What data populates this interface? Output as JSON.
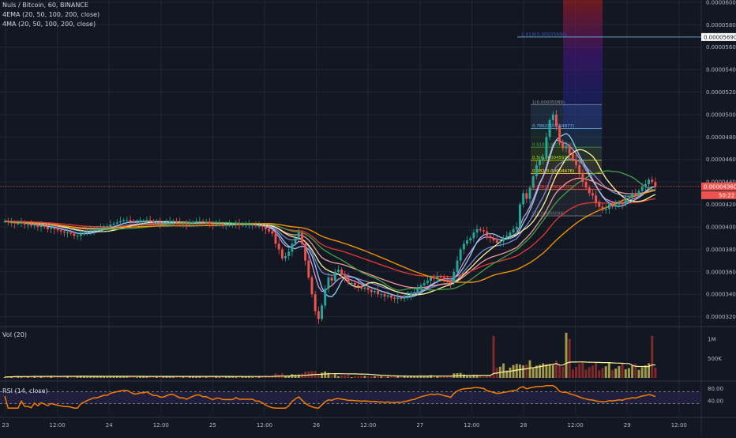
{
  "header": {
    "title": "Nuls / Bitcoin, 60, BINANCE",
    "ema_label": "4EMA (20, 50, 100, 200, close)",
    "ma_label": "4MA (20, 50, 100, 200, close)",
    "vol_label": "Vol (20)",
    "rsi_label": "RSI (14, close)"
  },
  "colors": {
    "background": "#131722",
    "grid": "#232733",
    "up": "#26a69a",
    "down": "#ef5350",
    "vol_bar": "#b3a84a",
    "rsi_line": "#f57c00",
    "rsi_band": "#2c2452"
  },
  "price_tags": {
    "current": "0.00004360",
    "countdown": "50:22",
    "target": "0.00005690",
    "target_label": "1.618(0.00005690)"
  },
  "chart_data": {
    "type": "candlestick",
    "price_axis": {
      "ylim": [
        3.12e-05,
        6.02e-05
      ],
      "ticks": [
        "0.00006000",
        "0.00005800",
        "0.00005600",
        "0.00005400",
        "0.00005200",
        "0.00005000",
        "0.00004800",
        "0.00004600",
        "0.00004400",
        "0.00004200",
        "0.00004000",
        "0.00003800",
        "0.00003600",
        "0.00003400",
        "0.00003200"
      ]
    },
    "time_axis": {
      "ticks": [
        "23",
        "12:00",
        "24",
        "12:00",
        "25",
        "12:00",
        "26",
        "12:00",
        "27",
        "12:00",
        "28",
        "12:00",
        "29",
        "12:00"
      ]
    },
    "volume_axis": {
      "ticks": [
        "1M",
        "500K"
      ],
      "ylim": [
        0,
        1300000
      ]
    },
    "rsi_axis": {
      "ticks": [
        "80.00",
        "40.00"
      ],
      "upper": 70,
      "lower": 30,
      "ylim": [
        0,
        100
      ]
    },
    "fib_levels": [
      {
        "label": "1(0.00005089)",
        "value": 5.089e-05,
        "color": "#9598a1"
      },
      {
        "label": "0.786(0.00004877)",
        "value": 4.877e-05,
        "color": "#64b5f6"
      },
      {
        "label": "0.618(0.00004710)",
        "value": 4.71e-05,
        "color": "#43a047"
      },
      {
        "label": "0.5(0.00004593)",
        "value": 4.593e-05,
        "color": "#aeea00"
      },
      {
        "label": "0.382(0.00004476)",
        "value": 4.476e-05,
        "color": "#ffeb3b"
      },
      {
        "label": "0.236(0.00004333)",
        "value": 4.333e-05,
        "color": "#ef5350"
      },
      {
        "label": "0(0.00004098)",
        "value": 4.098e-05,
        "color": "#787b86"
      }
    ],
    "close": [
      4.05,
      4.04,
      4.04,
      4.03,
      4.03,
      4.04,
      4.02,
      4.02,
      4.01,
      4.02,
      4.0,
      4.01,
      4.0,
      3.98,
      3.99,
      3.98,
      3.97,
      3.96,
      3.95,
      3.95,
      3.94,
      3.92,
      3.92,
      3.94,
      3.95,
      3.96,
      3.97,
      3.98,
      3.98,
      3.99,
      4.0,
      4.0,
      4.02,
      4.03,
      4.04,
      4.05,
      4.06,
      4.06,
      4.05,
      4.04,
      4.04,
      4.05,
      4.05,
      4.06,
      4.05,
      4.04,
      4.04,
      4.03,
      4.03,
      4.04,
      4.05,
      4.05,
      4.04,
      4.03,
      4.03,
      4.02,
      4.03,
      4.04,
      4.05,
      4.05,
      4.04,
      4.04,
      4.03,
      4.02,
      4.03,
      4.03,
      4.02,
      4.02,
      4.02,
      4.02,
      4.03,
      4.02,
      4.02,
      4.02,
      4.02,
      4.02,
      4.01,
      4.01,
      4.0,
      3.98,
      3.96,
      3.94,
      3.85,
      3.8,
      3.72,
      3.74,
      3.78,
      3.85,
      3.9,
      3.95,
      3.85,
      3.7,
      3.55,
      3.4,
      3.25,
      3.18,
      3.3,
      3.45,
      3.55,
      3.52,
      3.6,
      3.62,
      3.58,
      3.55,
      3.5,
      3.5,
      3.48,
      3.47,
      3.45,
      3.46,
      3.44,
      3.42,
      3.43,
      3.4,
      3.4,
      3.38,
      3.39,
      3.37,
      3.36,
      3.37,
      3.36,
      3.38,
      3.39,
      3.41,
      3.42,
      3.45,
      3.48,
      3.5,
      3.52,
      3.55,
      3.54,
      3.56,
      3.55,
      3.53,
      3.52,
      3.5,
      3.6,
      3.7,
      3.8,
      3.85,
      3.88,
      3.9,
      3.95,
      3.98,
      3.97,
      3.96,
      3.92,
      3.9,
      3.88,
      3.86,
      3.87,
      3.9,
      3.92,
      3.95,
      3.98,
      4.0,
      4.2,
      4.3,
      4.25,
      4.35,
      4.45,
      4.55,
      4.6,
      4.62,
      4.8,
      4.95,
      5.0,
      4.9,
      4.75,
      4.7,
      4.72,
      4.65,
      4.6,
      4.55,
      4.48,
      4.4,
      4.35,
      4.3,
      4.28,
      4.22,
      4.18,
      4.15,
      4.16,
      4.2,
      4.18,
      4.2,
      4.22,
      4.2,
      4.25,
      4.26,
      4.3,
      4.28,
      4.32,
      4.36,
      4.38,
      4.42,
      4.4,
      4.36
    ],
    "ema_series": [
      {
        "name": "EMA 20",
        "color": "#ce93d8"
      },
      {
        "name": "EMA 50",
        "color": "#7986cb"
      },
      {
        "name": "EMA 100",
        "color": "#ef9a9a"
      },
      {
        "name": "EMA 200",
        "color": "#e53935"
      }
    ],
    "ma_series": [
      {
        "name": "MA 20",
        "color": "#90caf9"
      },
      {
        "name": "MA 50",
        "color": "#fff59d"
      },
      {
        "name": "MA 100",
        "color": "#43a047"
      },
      {
        "name": "MA 200",
        "color": "#ff9800"
      }
    ]
  }
}
